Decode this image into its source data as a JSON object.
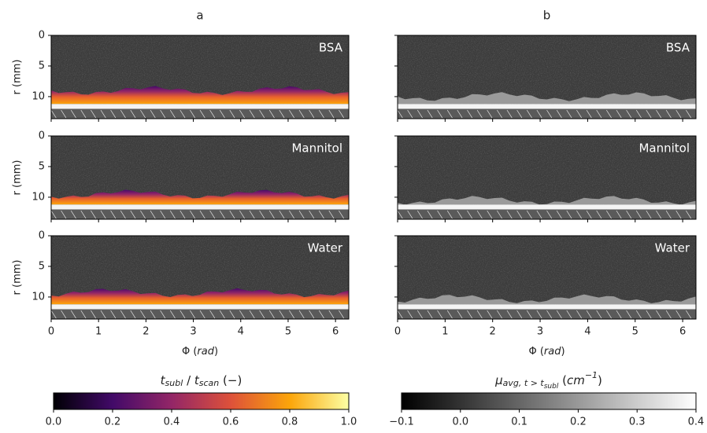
{
  "columns": [
    {
      "title": "a"
    },
    {
      "title": "b"
    }
  ],
  "rows": [
    "BSA",
    "Mannitol",
    "Water"
  ],
  "y_axis": {
    "label": "r (mm)",
    "ylim": [
      0,
      13.6
    ],
    "yticks": [
      0,
      5,
      10
    ]
  },
  "x_axis": {
    "label": [
      "Φ (",
      "rad",
      ")"
    ],
    "xlim": [
      0,
      6.28
    ],
    "xticks": [
      0,
      1,
      2,
      3,
      4,
      5,
      6
    ]
  },
  "colorbars": [
    {
      "label": [
        "t",
        "subl",
        " / ",
        "t",
        "scan",
        " (−)"
      ],
      "lim": [
        0,
        1
      ],
      "ticks": [
        {
          "value": 0,
          "label": "0.0"
        },
        0.2,
        0.4,
        0.6,
        0.8,
        {
          "value": 1,
          "label": "1.0"
        }
      ]
    },
    {
      "label": [
        "μ",
        "avg, t > t",
        "subl",
        " (",
        "cm",
        "−1",
        ")"
      ],
      "lim": [
        -0.1,
        0.4
      ],
      "ticks": [
        {
          "value": -0.1,
          "label": "−0.1"
        },
        {
          "value": 0,
          "label": "0.0"
        },
        0.1,
        0.2,
        0.3,
        0.4
      ]
    }
  ]
}
